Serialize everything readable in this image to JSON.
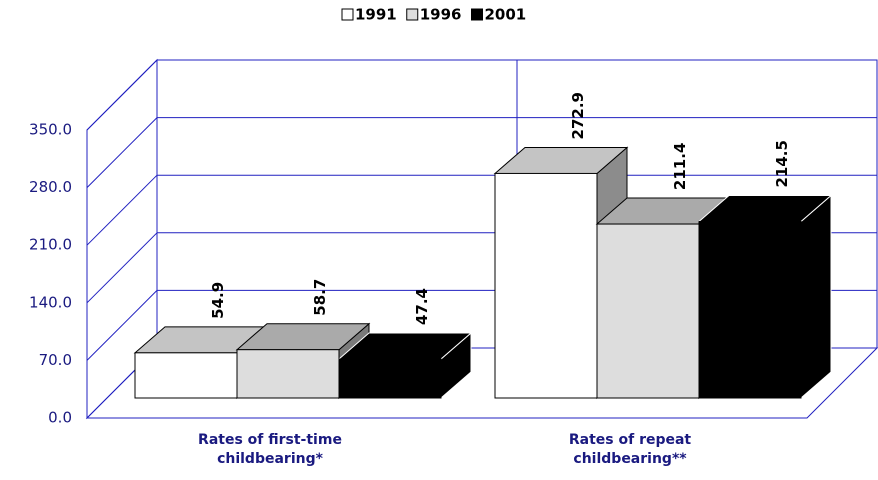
{
  "chart_data": {
    "type": "bar3d",
    "categories": [
      "Rates of first-time childbearing*",
      "Rates of repeat childbearing**"
    ],
    "series": [
      {
        "name": "1991",
        "color": "#ffffff",
        "values": [
          54.9,
          272.9
        ]
      },
      {
        "name": "1996",
        "color": "#dddddd",
        "values": [
          58.7,
          211.4
        ]
      },
      {
        "name": "2001",
        "color": "#000000",
        "values": [
          47.4,
          214.5
        ]
      }
    ],
    "ylim": [
      0,
      350
    ],
    "yticks": [
      {
        "value": 0,
        "label": "0.0"
      },
      {
        "value": 70,
        "label": "70.0"
      },
      {
        "value": 140,
        "label": "140.0"
      },
      {
        "value": 210,
        "label": "210.0"
      },
      {
        "value": 280,
        "label": "280.0"
      },
      {
        "value": 350,
        "label": "350.0"
      }
    ],
    "grid": true,
    "legend": "top"
  }
}
